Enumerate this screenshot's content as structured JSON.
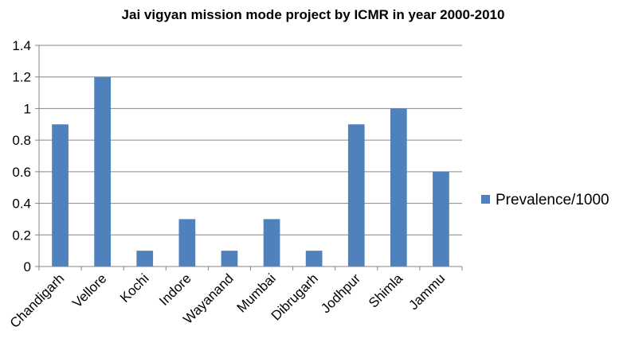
{
  "chart_data": {
    "type": "bar",
    "title": "Jai vigyan mission mode project by ICMR in year 2000-2010",
    "xlabel": "",
    "ylabel": "",
    "categories": [
      "Chandigarh",
      "Vellore",
      "Kochi",
      "Indore",
      "Wayanand",
      "Mumbai",
      "Dibrugarh",
      "Jodhpur",
      "Shimla",
      "Jammu"
    ],
    "series": [
      {
        "name": "Prevalence/1000",
        "values": [
          0.9,
          1.2,
          0.1,
          0.3,
          0.1,
          0.3,
          0.1,
          0.9,
          1.0,
          0.6
        ],
        "color": "#4F81BD"
      }
    ],
    "ylim": [
      0,
      1.4
    ],
    "yticks": [
      "0",
      "0.2",
      "0.4",
      "0.6",
      "0.8",
      "1",
      "1.2",
      "1.4"
    ],
    "grid": true,
    "gridColor": "#868686",
    "legend": "right"
  }
}
